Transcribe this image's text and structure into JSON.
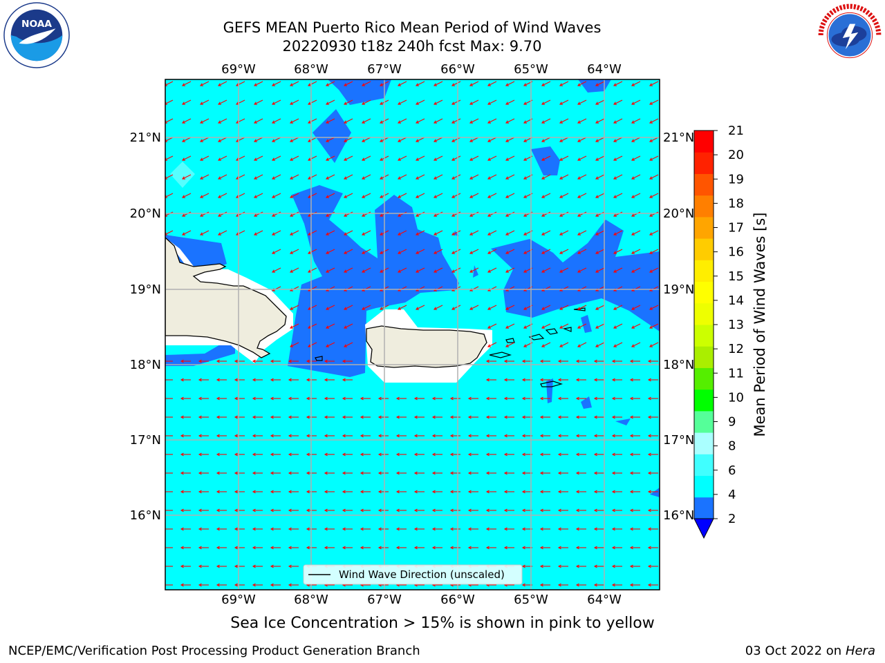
{
  "header": {
    "title_line1": "GEFS MEAN Puerto Rico Mean Period of Wind Waves",
    "title_line2": "20220930 t18z 240h fcst   Max: 9.70"
  },
  "logos": {
    "left": "noaa-logo",
    "right": "national-weather-service-logo"
  },
  "map": {
    "lon_labels": [
      "69°W",
      "68°W",
      "67°W",
      "66°W",
      "65°W",
      "64°W"
    ],
    "lat_labels": [
      "21°N",
      "20°N",
      "19°N",
      "18°N",
      "17°N",
      "16°N"
    ],
    "land_color": "#efedde",
    "ocean_low_color": "#1a73ff",
    "ocean_color": "#00ffff",
    "arrow_color": "#ff0000",
    "legend_label": "Wind Wave Direction (unscaled)"
  },
  "colorbar": {
    "label": "Mean Period of Wind Waves [s]",
    "tick_labels": [
      "2",
      "4",
      "6",
      "8",
      "9",
      "10",
      "11",
      "12",
      "13",
      "14",
      "15",
      "16",
      "17",
      "18",
      "19",
      "20",
      "21"
    ],
    "colors": [
      "#1a73ff",
      "#00ffff",
      "#40ffff",
      "#aaffff",
      "#55ff99",
      "#00ff00",
      "#55ee00",
      "#aaee00",
      "#ccff00",
      "#eeff00",
      "#ffff00",
      "#ffee00",
      "#ffcc00",
      "#ffa500",
      "#ff7f00",
      "#ff5500",
      "#ff2200",
      "#ff0000"
    ],
    "extend_color": "#0000ff"
  },
  "notes": {
    "ice_note": "Sea Ice Concentration > 15% is shown in pink to yellow"
  },
  "footer": {
    "left": "NCEP/EMC/Verification Post Processing Product Generation Branch",
    "right_date": "03 Oct 2022 on ",
    "right_host": "Hera"
  }
}
